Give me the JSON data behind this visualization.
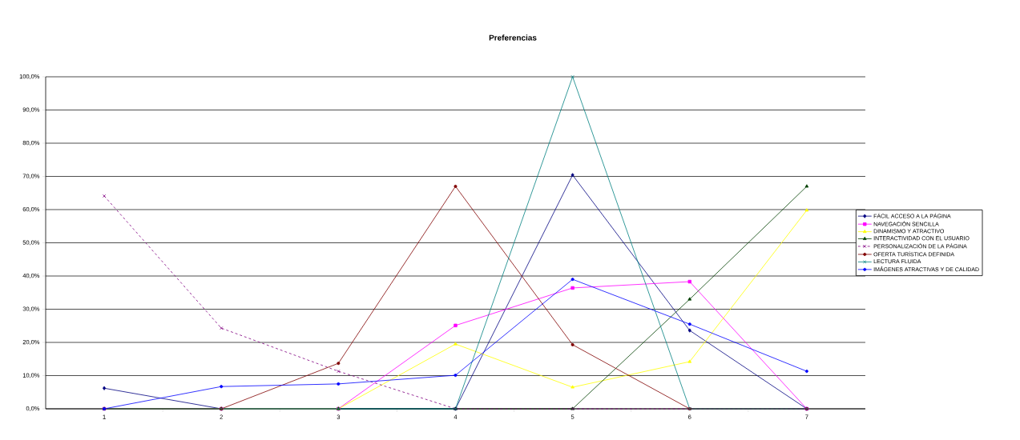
{
  "chart_data": {
    "type": "line",
    "title": "Preferencias",
    "categories": [
      "1",
      "2",
      "3",
      "4",
      "5",
      "6",
      "7"
    ],
    "ylim": [
      0,
      100
    ],
    "yticks": [
      {
        "value": 0,
        "label": "0,0%"
      },
      {
        "value": 10,
        "label": "10,0%"
      },
      {
        "value": 20,
        "label": "20,0%"
      },
      {
        "value": 30,
        "label": "30,0%"
      },
      {
        "value": 40,
        "label": "40,0%"
      },
      {
        "value": 50,
        "label": "50,0%"
      },
      {
        "value": 60,
        "label": "60,0%"
      },
      {
        "value": 70,
        "label": "70,0%"
      },
      {
        "value": 80,
        "label": "80,0%"
      },
      {
        "value": 90,
        "label": "90,0%"
      },
      {
        "value": 100,
        "label": "100,0%"
      }
    ],
    "grid": "y",
    "legend": "right",
    "series": [
      {
        "name": "FÁCIL ACCESO A LA PÁGINA",
        "color": "#000080",
        "marker": "diamond",
        "values": [
          6.2,
          0,
          0,
          0,
          70.4,
          23.6,
          0
        ]
      },
      {
        "name": "NAVEGACIÓN SENCILLA",
        "color": "#ff00ff",
        "marker": "square",
        "values": [
          0,
          0,
          0,
          25.1,
          36.4,
          38.3,
          0
        ]
      },
      {
        "name": "DINAMISMO Y ATRACTIVO",
        "color": "#ffff00",
        "marker": "triangle",
        "values": [
          0,
          0,
          0,
          19.5,
          6.5,
          14.2,
          59.8
        ]
      },
      {
        "name": "INTERACTIVIDAD CON EL USUARIO",
        "color": "#004000",
        "marker": "triangle",
        "values": [
          0,
          0,
          0,
          0,
          0,
          33.0,
          67.0
        ]
      },
      {
        "name": "PERSONALIZACIÓN DE LA PÁGINA",
        "color": "#800080",
        "marker": "cross",
        "line_style": "dashed",
        "values": [
          64.1,
          24.3,
          11.3,
          0,
          0,
          0,
          0
        ]
      },
      {
        "name": "OFERTA TURÍSTICA DEFINIDA",
        "color": "#800000",
        "marker": "circle",
        "values": [
          0,
          0,
          13.7,
          67.0,
          19.3,
          0,
          0
        ]
      },
      {
        "name": "LECTURA FLUIDA",
        "color": "#008080",
        "marker": "cross",
        "values": [
          0,
          0,
          0,
          0,
          100,
          0,
          0
        ]
      },
      {
        "name": "IMÁGENES ATRACTIVAS Y DE CALIDAD",
        "color": "#0000ff",
        "marker": "circle",
        "values": [
          0,
          6.7,
          7.5,
          10.1,
          39.0,
          25.5,
          11.3
        ]
      }
    ]
  }
}
